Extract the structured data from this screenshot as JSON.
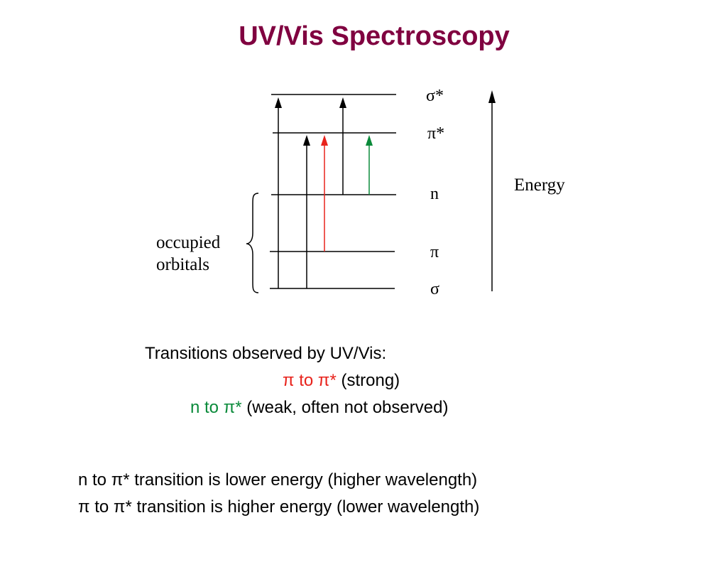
{
  "title": "UV/Vis Spectroscopy",
  "orbitals": {
    "sigma_star": "σ*",
    "pi_star": "π*",
    "n": "n",
    "pi": "π",
    "sigma": "σ"
  },
  "energy_label": "Energy",
  "brace_label": {
    "line1": "occupied",
    "line2": "orbitals"
  },
  "colors": {
    "title": "#800040",
    "pi_to_pi_star": "#e8231c",
    "n_to_pi_star": "#0a8a3a"
  },
  "transitions_heading": "Transitions observed by UV/Vis:",
  "transition1": {
    "colored": "π to π*",
    "rest": " (strong)"
  },
  "transition2": {
    "colored": "n to π*",
    "rest": " (weak, often not observed)"
  },
  "notes": {
    "line1": "n to π* transition is lower energy (higher wavelength)",
    "line2": "π to π* transition is higher energy (lower wavelength)"
  }
}
